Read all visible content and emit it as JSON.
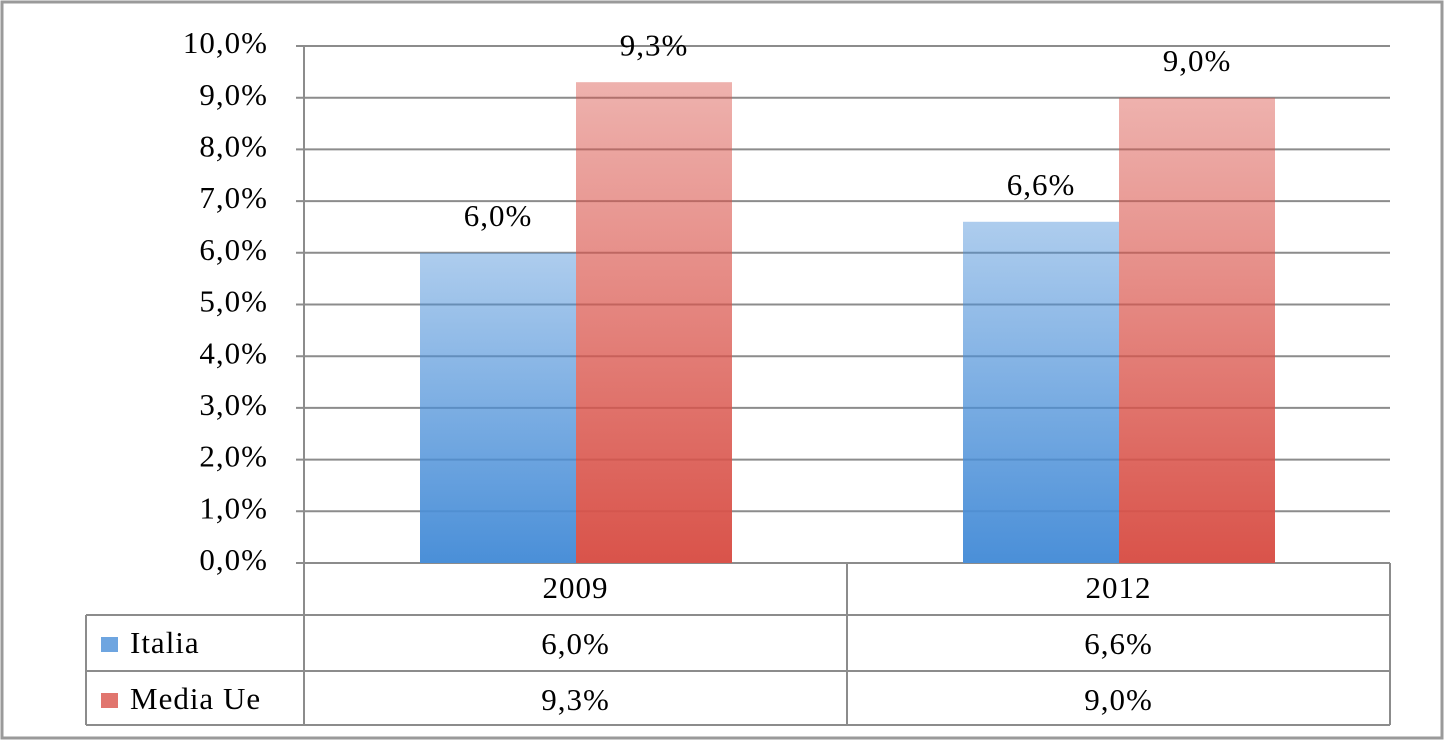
{
  "chart_data": {
    "type": "bar",
    "categories": [
      "2009",
      "2012"
    ],
    "series": [
      {
        "name": "Italia",
        "color": "#4a8fd8",
        "values": [
          6.0,
          6.6
        ],
        "value_labels": [
          "6,0%",
          "6,6%"
        ]
      },
      {
        "name": "Media Ue",
        "color": "#d9534a",
        "values": [
          9.3,
          9.0
        ],
        "value_labels": [
          "9,3%",
          "9,0%"
        ]
      }
    ],
    "ylim": [
      0,
      10
    ],
    "yticks": [
      {
        "value": 0,
        "label": "0,0%"
      },
      {
        "value": 1,
        "label": "1,0%"
      },
      {
        "value": 2,
        "label": "2,0%"
      },
      {
        "value": 3,
        "label": "3,0%"
      },
      {
        "value": 4,
        "label": "4,0%"
      },
      {
        "value": 5,
        "label": "5,0%"
      },
      {
        "value": 6,
        "label": "6,0%"
      },
      {
        "value": 7,
        "label": "7,0%"
      },
      {
        "value": 8,
        "label": "8,0%"
      },
      {
        "value": 9,
        "label": "9,0%"
      },
      {
        "value": 10,
        "label": "10,0%"
      }
    ],
    "grid": true
  }
}
